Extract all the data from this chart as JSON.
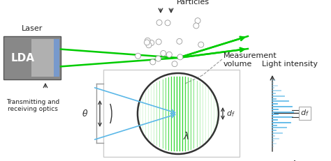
{
  "bg_color": "#ffffff",
  "lda_text": "LDA",
  "laser_label": "Laser",
  "transmitting_label": "Transmitting and\nreceiving optics",
  "particles_label": "Particles",
  "measurement_label": "Measurement\nvolume",
  "light_intensity_label": "Light intensity",
  "green_color": "#00cc00",
  "blue_color": "#5bb8e8",
  "dark_color": "#333333",
  "df_label": "$d_f$",
  "lambda_label": "$\\lambda$",
  "theta_label": "$\\theta$",
  "lda_outer_color": "#888888",
  "lda_inner_color": "#aaaaaa",
  "lda_strip_color": "#7799cc"
}
